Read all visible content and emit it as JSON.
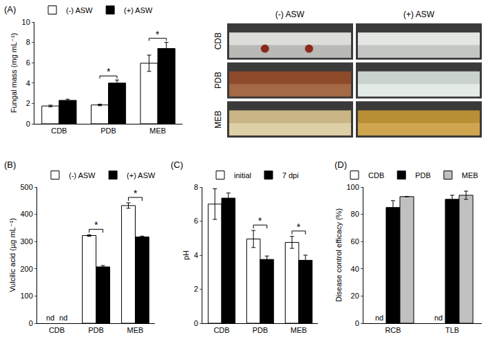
{
  "photo_panel": {
    "columns": [
      "(-) ASW",
      "(+) ASW"
    ],
    "rows": [
      "CDB",
      "PDB",
      "MEB"
    ]
  },
  "chart_data": [
    {
      "panel": "(A)",
      "type": "bar",
      "categories": [
        "CDB",
        "PDB",
        "MEB"
      ],
      "y_label": "Fungal mass (mg mL⁻¹)",
      "ylim": [
        0,
        10
      ],
      "yticks": [
        0,
        2,
        4,
        6,
        8,
        10
      ],
      "grid": false,
      "legend": "top",
      "series": [
        {
          "name": "(-) ASW",
          "color": "#ffffff",
          "values": [
            1.75,
            1.85,
            5.95
          ],
          "errors": [
            0.08,
            0.08,
            0.8
          ]
        },
        {
          "name": "(+) ASW",
          "color": "#000000",
          "values": [
            2.3,
            4.0,
            7.4
          ],
          "errors": [
            0.12,
            0.3,
            0.6
          ]
        }
      ],
      "significance": [
        {
          "category": "PDB",
          "label": "*"
        },
        {
          "category": "MEB",
          "label": "*"
        }
      ]
    },
    {
      "panel": "(B)",
      "type": "bar",
      "categories": [
        "CDB",
        "PDB",
        "MEB"
      ],
      "y_label": "Vulcilic acid (µg mL⁻¹)",
      "ylim": [
        0,
        500
      ],
      "yticks": [
        0,
        100,
        200,
        300,
        400,
        500
      ],
      "grid": false,
      "legend": "top",
      "missing_label": "nd",
      "series": [
        {
          "name": "(-) ASW",
          "color": "#ffffff",
          "values": [
            null,
            322,
            432
          ],
          "errors": [
            null,
            3,
            10
          ]
        },
        {
          "name": "(+) ASW",
          "color": "#000000",
          "values": [
            null,
            207,
            317
          ],
          "errors": [
            null,
            5,
            3
          ]
        }
      ],
      "significance": [
        {
          "category": "PDB",
          "label": "*"
        },
        {
          "category": "MEB",
          "label": "*"
        }
      ]
    },
    {
      "panel": "(C)",
      "type": "bar",
      "categories": [
        "CDB",
        "PDB",
        "MEB"
      ],
      "y_label": "pH",
      "ylim": [
        0,
        8
      ],
      "yticks": [
        0,
        2,
        4,
        6,
        8
      ],
      "grid": false,
      "legend": "top",
      "series": [
        {
          "name": "initial",
          "color": "#ffffff",
          "values": [
            7.0,
            4.95,
            4.75
          ],
          "errors": [
            0.9,
            0.5,
            0.35
          ]
        },
        {
          "name": "7 dpi",
          "color": "#000000",
          "values": [
            7.35,
            3.75,
            3.7
          ],
          "errors": [
            0.3,
            0.2,
            0.3
          ]
        }
      ],
      "significance": [
        {
          "category": "PDB",
          "label": "*"
        },
        {
          "category": "MEB",
          "label": "*"
        }
      ]
    },
    {
      "panel": "(D)",
      "type": "bar",
      "categories": [
        "RCB",
        "TLB"
      ],
      "y_label": "Disease control efficacy (%)",
      "ylim": [
        0,
        100
      ],
      "yticks": [
        0,
        20,
        40,
        60,
        80,
        100
      ],
      "grid": false,
      "legend": "top",
      "missing_label": "nd",
      "series": [
        {
          "name": "CDB",
          "color": "#ffffff",
          "values": [
            null,
            null
          ],
          "errors": [
            null,
            null
          ]
        },
        {
          "name": "PDB",
          "color": "#000000",
          "values": [
            85,
            91
          ],
          "errors": [
            5,
            3
          ]
        },
        {
          "name": "MEB",
          "color": "#c0c0c0",
          "values": [
            93,
            94
          ],
          "errors": [
            0,
            3
          ]
        }
      ]
    }
  ]
}
